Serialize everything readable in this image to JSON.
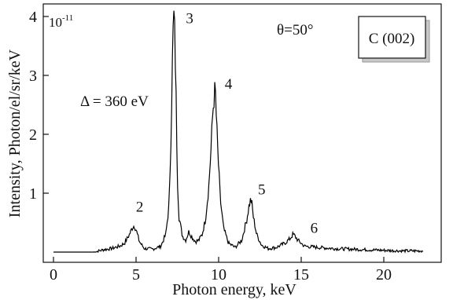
{
  "chart_data": {
    "type": "line",
    "title": "",
    "xlabel": "Photon energy, keV",
    "ylabel": "Intensity, Photon/el/sr/keV",
    "y_scale_note": {
      "base": "10",
      "exponent": "-11"
    },
    "xlim": [
      0,
      23.5
    ],
    "ylim": [
      0,
      4.25
    ],
    "x_ticks": [
      "0",
      "5",
      "10",
      "15",
      "20"
    ],
    "y_ticks": [
      "1",
      "2",
      "3",
      "4"
    ],
    "grid": false,
    "annotations": {
      "angle": "θ=50°",
      "delta": "Δ = 360 eV",
      "crystal": "C (002)"
    },
    "peaks": [
      {
        "label": "2",
        "x": 4.9,
        "y": 0.45
      },
      {
        "label": "3",
        "x": 7.35,
        "y": 4.05
      },
      {
        "label": "4",
        "x": 9.8,
        "y": 2.75
      },
      {
        "label": "5",
        "x": 12.0,
        "y": 0.9
      },
      {
        "label": "6",
        "x": 14.6,
        "y": 0.3
      }
    ],
    "series": [
      {
        "x": [
          0,
          2.5,
          3.0,
          3.5,
          4.0,
          4.3,
          4.6,
          4.8,
          4.9,
          5.0,
          5.2,
          5.5,
          6.0,
          6.5,
          6.8,
          7.0,
          7.1,
          7.2,
          7.25,
          7.3,
          7.35,
          7.4,
          7.45,
          7.5,
          7.6,
          7.8,
          8.0,
          8.2,
          8.4,
          8.6,
          8.8,
          9.0,
          9.2,
          9.4,
          9.55,
          9.65,
          9.75,
          9.8,
          9.85,
          9.95,
          10.1,
          10.3,
          10.6,
          11.0,
          11.4,
          11.7,
          11.85,
          11.95,
          12.0,
          12.1,
          12.3,
          12.6,
          13.0,
          13.5,
          14.0,
          14.3,
          14.5,
          14.6,
          14.8,
          15.2,
          16.0,
          17.0,
          18.0,
          19.0,
          20.0,
          21.0,
          22.4
        ],
        "y": [
          0.0,
          0.0,
          0.04,
          0.06,
          0.1,
          0.15,
          0.3,
          0.43,
          0.45,
          0.38,
          0.18,
          0.06,
          0.05,
          0.1,
          0.3,
          0.8,
          1.8,
          3.2,
          3.8,
          4.05,
          3.6,
          3.0,
          2.2,
          1.3,
          0.6,
          0.28,
          0.2,
          0.35,
          0.25,
          0.18,
          0.2,
          0.3,
          0.55,
          1.1,
          1.8,
          2.4,
          2.7,
          2.75,
          2.35,
          1.7,
          0.9,
          0.4,
          0.15,
          0.08,
          0.2,
          0.55,
          0.8,
          0.9,
          0.85,
          0.6,
          0.3,
          0.12,
          0.06,
          0.08,
          0.15,
          0.22,
          0.3,
          0.28,
          0.2,
          0.1,
          0.08,
          0.06,
          0.05,
          0.04,
          0.03,
          0.02,
          0.02
        ]
      }
    ]
  }
}
